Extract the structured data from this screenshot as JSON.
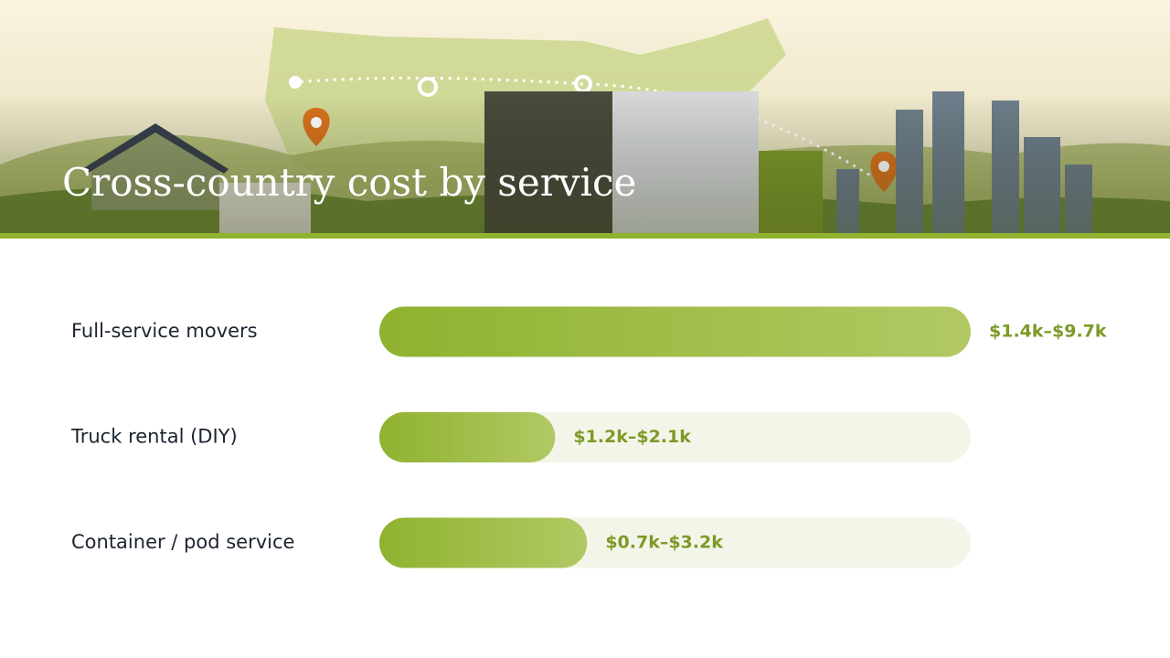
{
  "chart_data": {
    "type": "range-bar",
    "title": "Cross-country cost by service",
    "categories": [
      "Full-service movers",
      "Truck rental (DIY)",
      "Container / pod service"
    ],
    "low": [
      1.4,
      1.2,
      0.7
    ],
    "high": [
      9.7,
      2.1,
      3.2
    ],
    "value_labels": [
      "$1.4k–$9.7k",
      "$1.2k–$2.1k",
      "$0.7k–$3.2k"
    ],
    "xlim": [
      0,
      5.55
    ],
    "color": "#8fb22f"
  }
}
